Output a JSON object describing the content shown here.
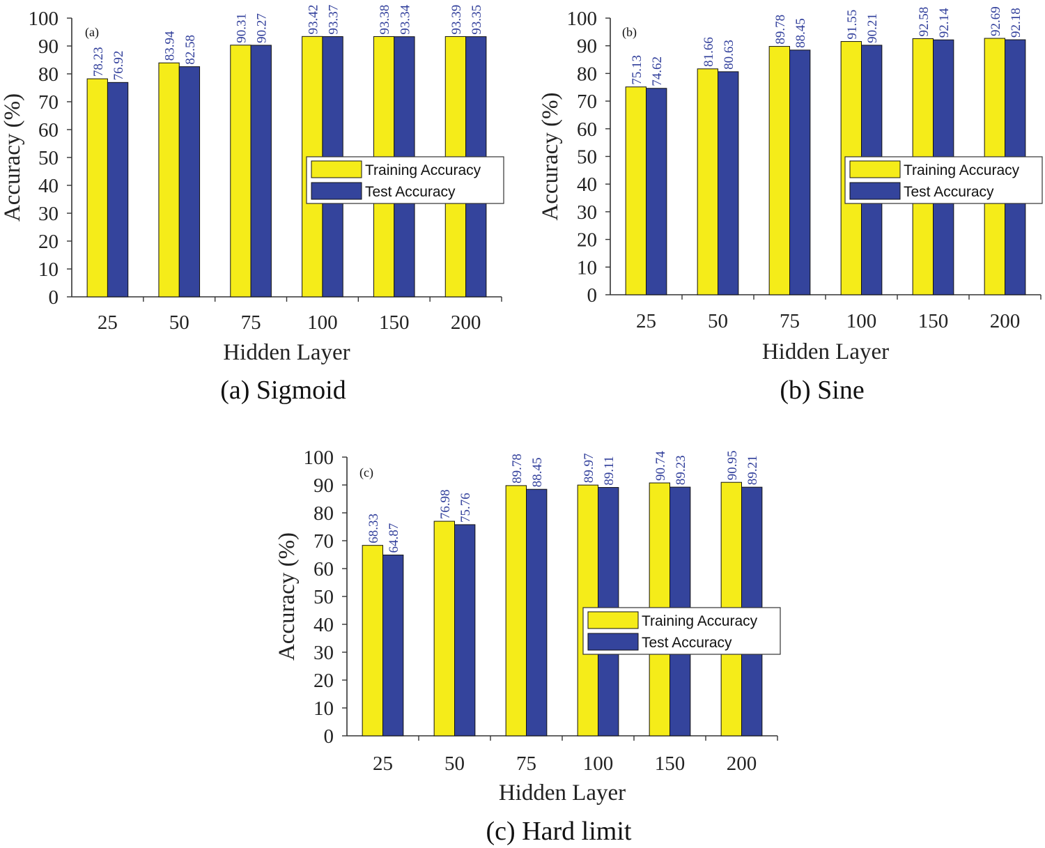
{
  "colors": {
    "training": "#f5ec19",
    "test": "#34449c",
    "bar_edge": "#111111",
    "axis": "#333333",
    "label": "#2f3d9a"
  },
  "chart_data": [
    {
      "type": "bar",
      "panel_tag": "(a)",
      "caption": "(a) Sigmoid",
      "xlabel": "Hidden Layer",
      "ylabel": "Accuracy (%)",
      "ylim": [
        0,
        100
      ],
      "yticks": [
        "0",
        "10",
        "20",
        "30",
        "40",
        "50",
        "60",
        "70",
        "80",
        "90",
        "100"
      ],
      "categories": [
        "25",
        "50",
        "75",
        "100",
        "150",
        "200"
      ],
      "series": [
        {
          "name": "Training Accuracy",
          "values": [
            78.23,
            83.94,
            90.31,
            93.42,
            93.38,
            93.39
          ],
          "labels": [
            "78.23",
            "83.94",
            "90.31",
            "93.42",
            "93.38",
            "93.39"
          ]
        },
        {
          "name": "Test Accuracy",
          "values": [
            76.92,
            82.58,
            90.27,
            93.37,
            93.34,
            93.35
          ],
          "labels": [
            "76.92",
            "82.58",
            "90.27",
            "93.37",
            "93.34",
            "93.35"
          ]
        }
      ],
      "legend_position": "center-right"
    },
    {
      "type": "bar",
      "panel_tag": "(b)",
      "caption": "(b) Sine",
      "xlabel": "Hidden Layer",
      "ylabel": "Accuracy (%)",
      "ylim": [
        0,
        100
      ],
      "yticks": [
        "0",
        "10",
        "20",
        "30",
        "40",
        "50",
        "60",
        "70",
        "80",
        "90",
        "100"
      ],
      "categories": [
        "25",
        "50",
        "75",
        "100",
        "150",
        "200"
      ],
      "series": [
        {
          "name": "Training Accuracy",
          "values": [
            75.13,
            81.66,
            89.78,
            91.55,
            92.58,
            92.69
          ],
          "labels": [
            "75.13",
            "81.66",
            "89.78",
            "91.55",
            "92.58",
            "92.69"
          ]
        },
        {
          "name": "Test Accuracy",
          "values": [
            74.62,
            80.63,
            88.45,
            90.21,
            92.14,
            92.18
          ],
          "labels": [
            "74.62",
            "80.63",
            "88.45",
            "90.21",
            "92.14",
            "92.18"
          ]
        }
      ],
      "legend_position": "center-right"
    },
    {
      "type": "bar",
      "panel_tag": "(c)",
      "caption": "(c) Hard limit",
      "xlabel": "Hidden Layer",
      "ylabel": "Accuracy (%)",
      "ylim": [
        0,
        100
      ],
      "yticks": [
        "0",
        "10",
        "20",
        "30",
        "40",
        "50",
        "60",
        "70",
        "80",
        "90",
        "100"
      ],
      "categories": [
        "25",
        "50",
        "75",
        "100",
        "150",
        "200"
      ],
      "series": [
        {
          "name": "Training Accuracy",
          "values": [
            68.33,
            76.98,
            89.78,
            89.97,
            90.74,
            90.95
          ],
          "labels": [
            "68.33",
            "76.98",
            "89.78",
            "89.97",
            "90.74",
            "90.95"
          ]
        },
        {
          "name": "Test Accuracy",
          "values": [
            64.87,
            75.76,
            88.45,
            89.11,
            89.23,
            89.21
          ],
          "labels": [
            "64.87",
            "75.76",
            "88.45",
            "89.11",
            "89.23",
            "89.21"
          ]
        }
      ],
      "legend_position": "center-right"
    }
  ]
}
